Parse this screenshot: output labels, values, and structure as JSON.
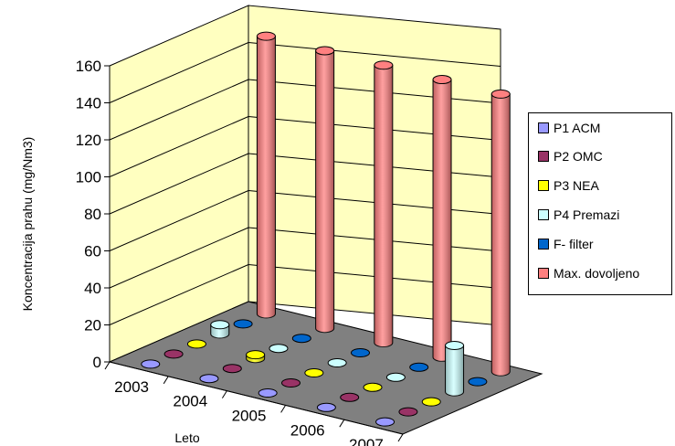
{
  "chart_data": {
    "type": "bar",
    "subtype": "3d-cylinder",
    "categories": [
      "2003",
      "2004",
      "2005",
      "2006",
      "2007"
    ],
    "series": [
      {
        "name": "P1 ACM",
        "values": [
          0,
          0,
          0,
          0,
          0
        ],
        "color": "#9999ff"
      },
      {
        "name": "P2 OMC",
        "values": [
          0,
          0,
          0,
          0,
          0
        ],
        "color": "#993366"
      },
      {
        "name": "P3 NEA",
        "values": [
          0,
          2,
          0,
          0,
          0
        ],
        "color": "#ffff00"
      },
      {
        "name": "P4 Premazi",
        "values": [
          5,
          0,
          0,
          0,
          25
        ],
        "color": "#ccffff"
      },
      {
        "name": "F- filter",
        "values": [
          0,
          0,
          0,
          0,
          0
        ],
        "color": "#0066cc"
      },
      {
        "name": "Max. dovoljeno",
        "values": [
          150,
          150,
          150,
          150,
          150
        ],
        "color": "#ff8080"
      }
    ],
    "xlabel": "Leto",
    "ylabel": "Koncentracija prahu (mg/Nm3)",
    "ylim": [
      0,
      160
    ],
    "yticks": [
      "0",
      "20",
      "40",
      "60",
      "80",
      "100",
      "120",
      "140",
      "160"
    ],
    "grid": true,
    "legend": "right"
  },
  "colors": {
    "wall": "#ffffc0",
    "floor": "#808080"
  }
}
